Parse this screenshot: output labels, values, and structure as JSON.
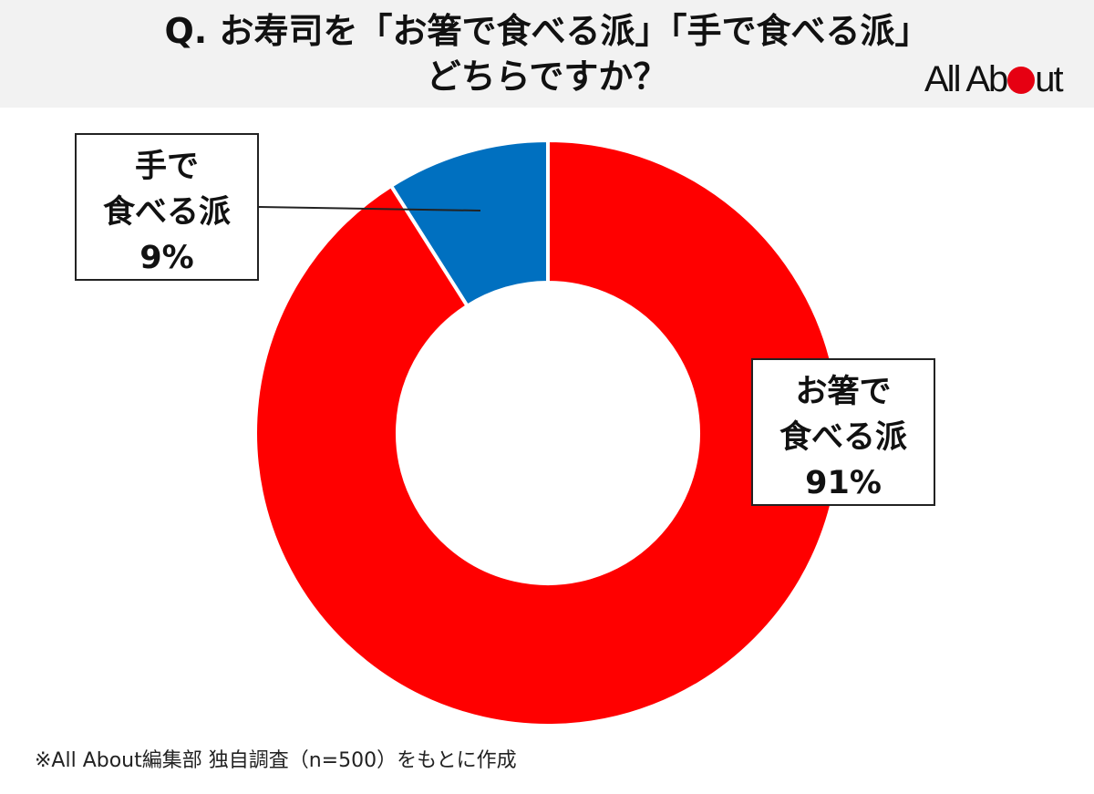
{
  "header": {
    "title_line1": "Q. お寿司を「お箸で食べる派」「手で食べる派」",
    "title_line2": "どちらですか？",
    "logo_prefix": "All Ab",
    "logo_suffix": "ut"
  },
  "colors": {
    "chopsticks": "#ff0000",
    "hand": "#0070c0",
    "header_bg": "#f2f2f2",
    "logo_dot": "#e60012"
  },
  "chart_data": {
    "type": "pie",
    "title": "Q. お寿司を「お箸で食べる派」「手で食べる派」どちらですか？",
    "categories": [
      "手で食べる派",
      "お箸で食べる派"
    ],
    "values": [
      9,
      91
    ],
    "unit": "%",
    "labels": [
      {
        "line1": "手で",
        "line2": "食べる派",
        "value_text": "9%"
      },
      {
        "line1": "お箸で",
        "line2": "食べる派",
        "value_text": "91%"
      }
    ]
  },
  "footnote": "※All About編集部 独自調査（n=500）をもとに作成"
}
